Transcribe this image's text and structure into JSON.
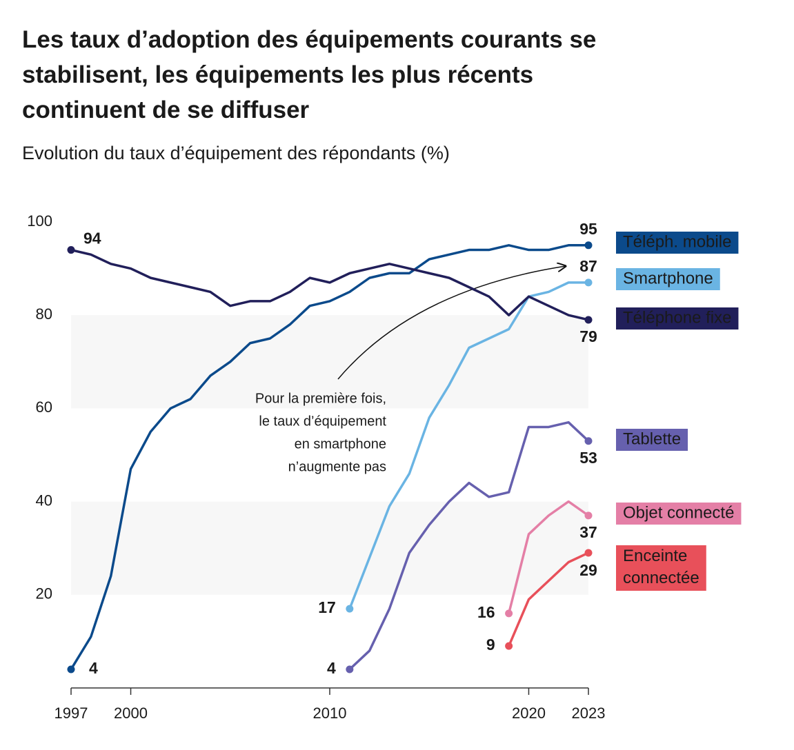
{
  "chart_data": {
    "type": "line",
    "title": "Les taux d’adoption des équipements courants se stabilisent, les équipements les plus récents continuent de se diffuser",
    "subtitle": "Evolution du taux d’équipement des répondants (%)",
    "annotation": [
      "Pour la première fois,",
      "le taux d’équipement",
      "en smartphone",
      "n’augmente pas"
    ],
    "x": [
      1997,
      1998,
      1999,
      2000,
      2001,
      2002,
      2003,
      2004,
      2005,
      2006,
      2007,
      2008,
      2009,
      2010,
      2011,
      2012,
      2013,
      2014,
      2015,
      2016,
      2017,
      2018,
      2019,
      2020,
      2021,
      2022,
      2023
    ],
    "xlim": [
      1997,
      2023
    ],
    "xticks": [
      1997,
      2000,
      2010,
      2020,
      2023
    ],
    "ylim": [
      0,
      100
    ],
    "yticks": [
      20,
      40,
      60,
      80,
      100
    ],
    "series": [
      {
        "name": "Téléph. mobile",
        "color": "#0b4a8b",
        "values": [
          4,
          11,
          24,
          47,
          55,
          60,
          62,
          67,
          70,
          74,
          75,
          78,
          82,
          83,
          85,
          88,
          89,
          89,
          92,
          93,
          94,
          94,
          95,
          94,
          94,
          95,
          95
        ]
      },
      {
        "name": "Smartphone",
        "color": "#6ab4e3",
        "values": [
          null,
          null,
          null,
          null,
          null,
          null,
          null,
          null,
          null,
          null,
          null,
          null,
          null,
          null,
          17,
          28,
          39,
          46,
          58,
          65,
          73,
          75,
          77,
          84,
          85,
          87,
          87
        ]
      },
      {
        "name": "Téléphone fixe",
        "color": "#211f5a",
        "values": [
          94,
          93,
          91,
          90,
          88,
          87,
          86,
          85,
          82,
          83,
          83,
          85,
          88,
          87,
          89,
          90,
          91,
          90,
          89,
          88,
          86,
          84,
          80,
          84,
          82,
          80,
          79
        ]
      },
      {
        "name": "Tablette",
        "color": "#6660ae",
        "values": [
          null,
          null,
          null,
          null,
          null,
          null,
          null,
          null,
          null,
          null,
          null,
          null,
          null,
          null,
          4,
          8,
          17,
          29,
          35,
          40,
          44,
          41,
          42,
          56,
          56,
          57,
          53
        ]
      },
      {
        "name": "Objet connecté",
        "color": "#e47fa6",
        "values": [
          null,
          null,
          null,
          null,
          null,
          null,
          null,
          null,
          null,
          null,
          null,
          null,
          null,
          null,
          null,
          null,
          null,
          null,
          null,
          null,
          null,
          null,
          16,
          33,
          37,
          40,
          37
        ]
      },
      {
        "name": "Enceinte connectée",
        "color": "#e8505a",
        "values": [
          null,
          null,
          null,
          null,
          null,
          null,
          null,
          null,
          null,
          null,
          null,
          null,
          null,
          null,
          null,
          null,
          null,
          null,
          null,
          null,
          null,
          null,
          9,
          19,
          23,
          27,
          29
        ]
      }
    ]
  }
}
